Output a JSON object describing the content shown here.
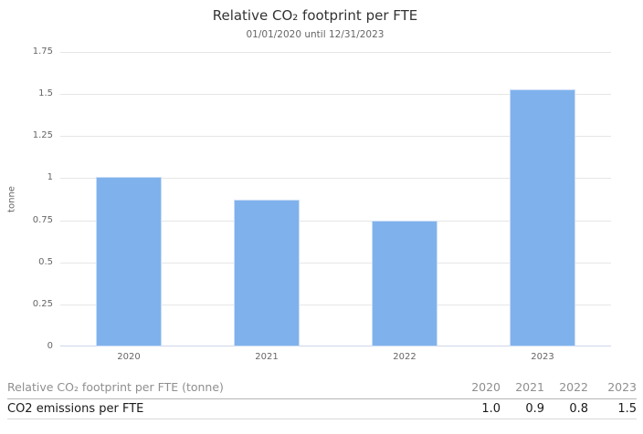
{
  "chart_data": {
    "type": "bar",
    "title": "Relative CO₂ footprint per FTE",
    "subtitle": "01/01/2020 until 12/31/2023",
    "categories": [
      "2020",
      "2021",
      "2022",
      "2023"
    ],
    "values": [
      1.01,
      0.87,
      0.75,
      1.53
    ],
    "xlabel": "",
    "ylabel": "tonne",
    "ylim": [
      0,
      1.75
    ],
    "ytick_step": 0.25,
    "ytick_labels": [
      "0",
      "0.25",
      "0.5",
      "0.75",
      "1",
      "1.25",
      "1.5",
      "1.75"
    ],
    "grid": true,
    "legend": "none",
    "bar_color": "#7fb2ec",
    "bar_border_color": "#cbdcf6",
    "grid_color": "#e6e6e6",
    "axis_line_color": "#ccd6eb",
    "tick_label_color": "#666666",
    "title_color": "#333333",
    "subtitle_color": "#666666"
  },
  "table": {
    "header_label": "Relative CO₂ footprint per FTE (tonne)",
    "year_columns": [
      "2020",
      "2021",
      "2022",
      "2023"
    ],
    "rows": [
      {
        "label": "CO2 emissions per FTE",
        "values": [
          "1.0",
          "0.9",
          "0.8",
          "1.5"
        ]
      }
    ]
  }
}
